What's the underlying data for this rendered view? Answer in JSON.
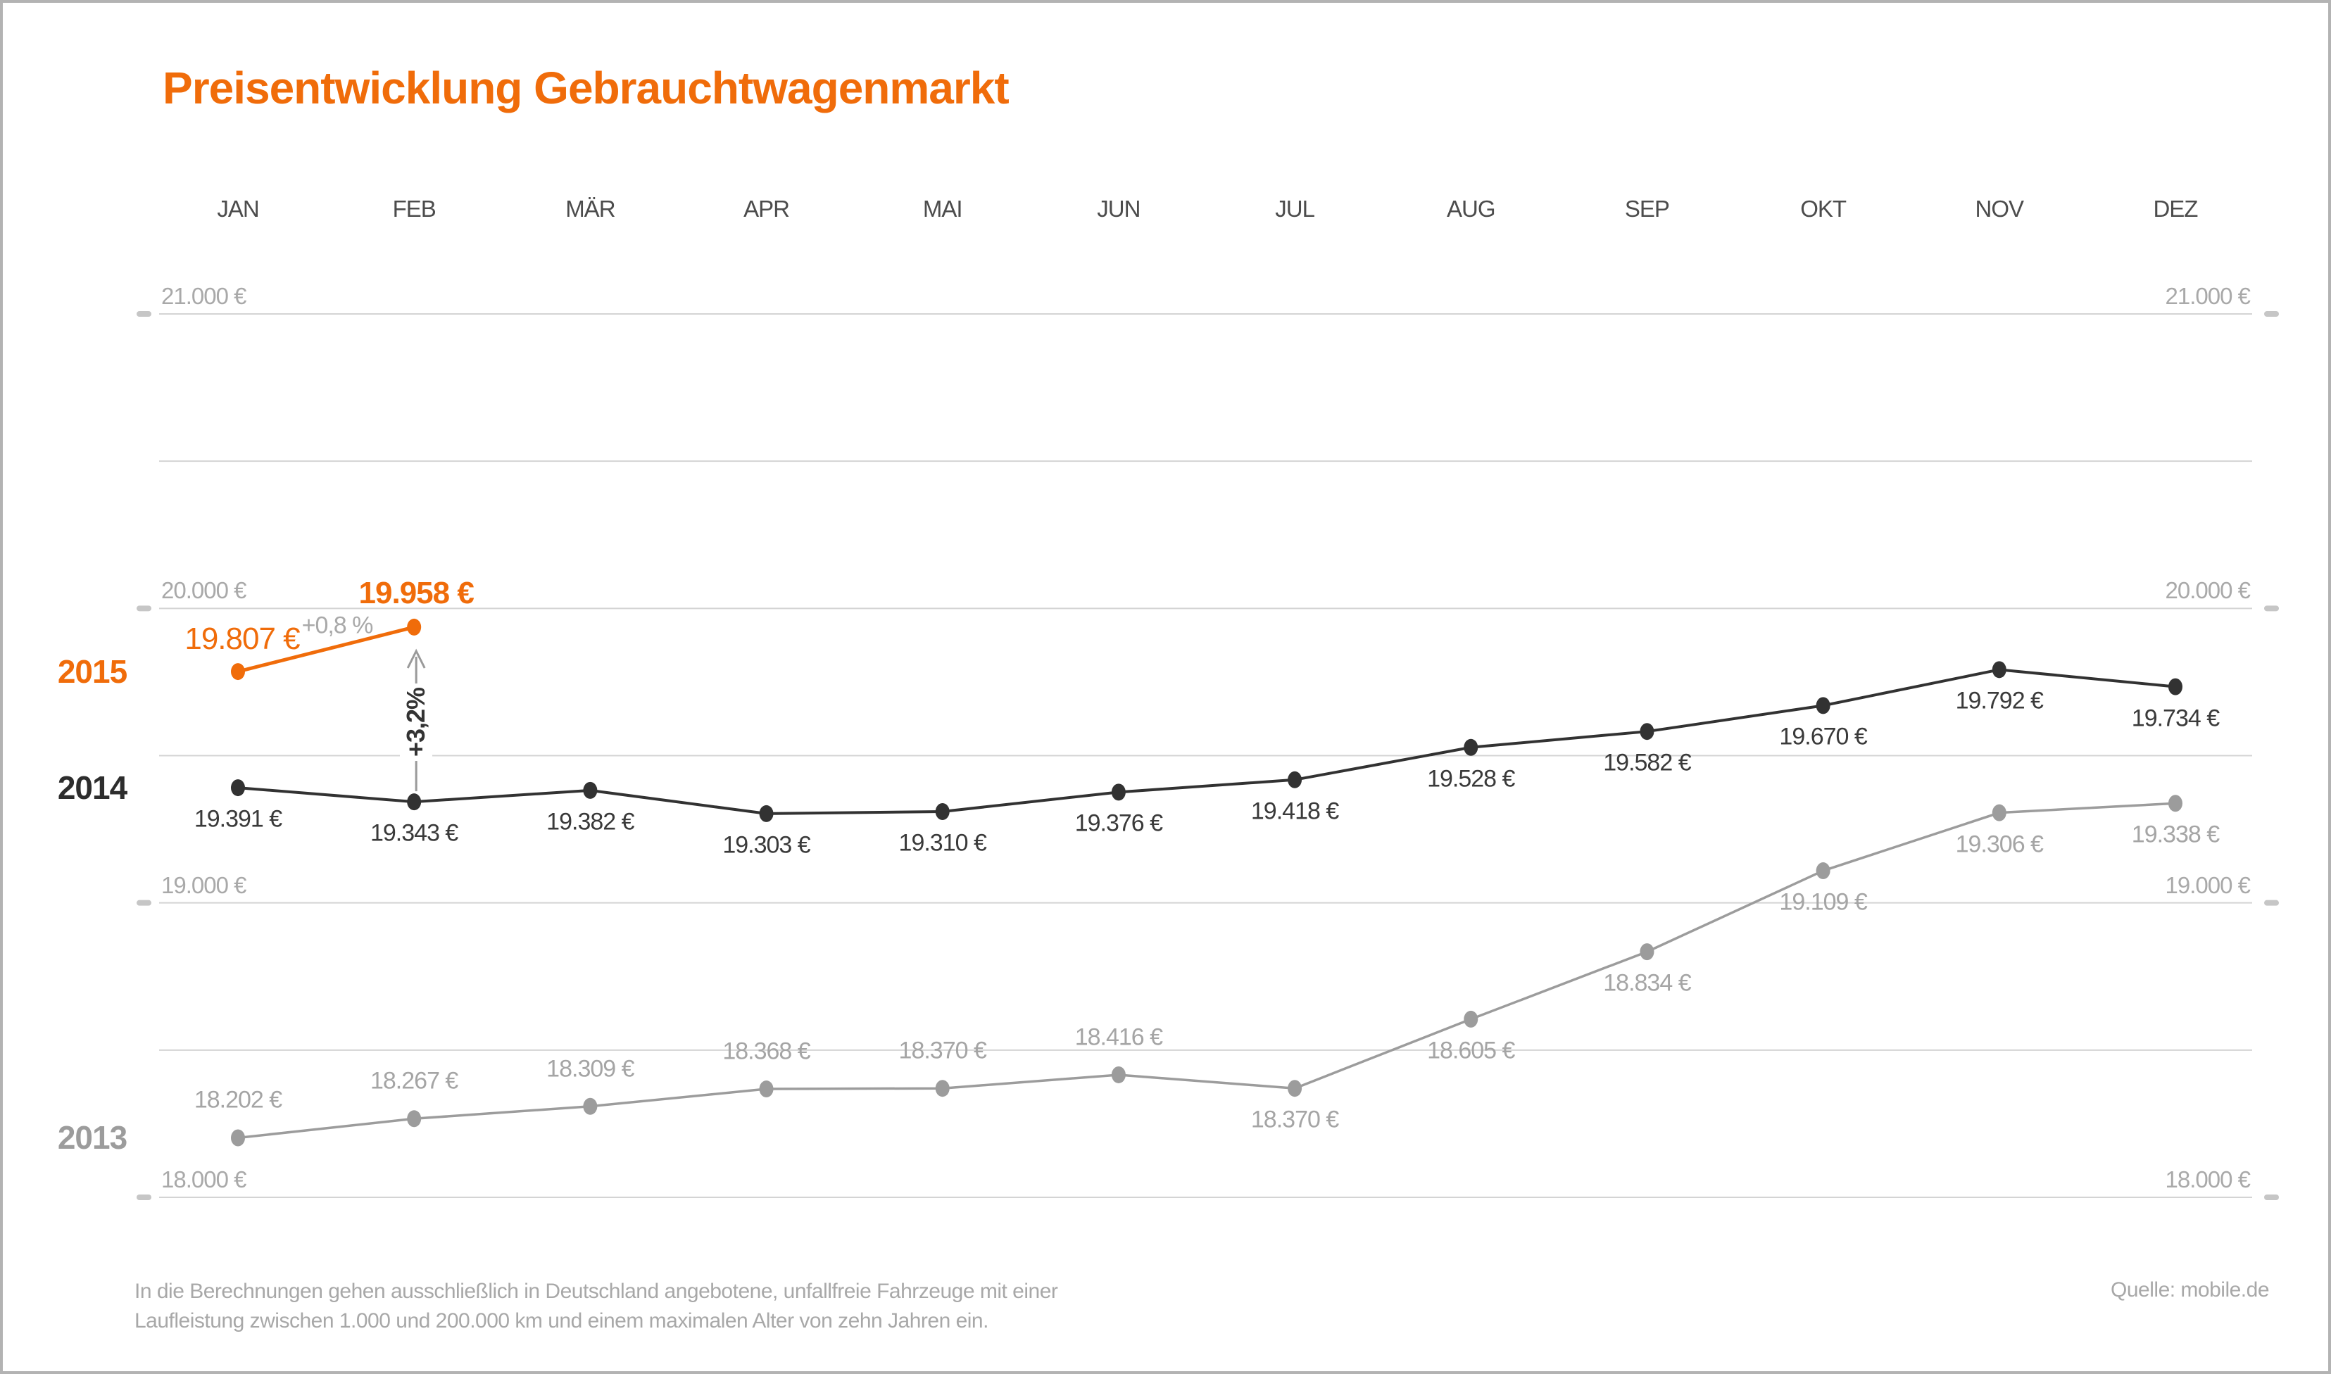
{
  "page": {
    "title": "Preisentwicklung Gebrauchtwagenmarkt",
    "footnote_line1": "In die Berechnungen gehen ausschließlich in Deutschland angebotene, unfallfreie Fahrzeuge mit einer",
    "footnote_line2": "Laufleistung zwischen 1.000 und 200.000 km und einem maximalen Alter von zehn Jahren ein.",
    "source": "Quelle: mobile.de"
  },
  "colors": {
    "accent_orange": "#f06c0a",
    "dark": "#323232",
    "mid_gray": "#9c9c9c",
    "light_gray_text": "#a9a9a9",
    "gridline": "#d4d4d4",
    "tick": "#c6c6c6",
    "arrow_gray": "#9a9a9a",
    "border": "#b3b3b3"
  },
  "chart_data": {
    "type": "line",
    "title": "Preisentwicklung Gebrauchtwagenmarkt",
    "unit": "EUR",
    "categories": [
      "JAN",
      "FEB",
      "MÄR",
      "APR",
      "MAI",
      "JUN",
      "JUL",
      "AUG",
      "SEP",
      "OKT",
      "NOV",
      "DEZ"
    ],
    "y_axis": {
      "min": 18000,
      "max": 21000,
      "gridline_step": 500,
      "labeled_ticks": [
        21000,
        20000,
        19000,
        18000
      ],
      "tick_labels": [
        "21.000 €",
        "20.000 €",
        "19.000 €",
        "18.000 €"
      ],
      "label_sides": "both",
      "grid": true
    },
    "legend_position": "left-year-labels",
    "series": [
      {
        "name": "2015",
        "color": "#f06c0a",
        "values": [
          19807,
          19958,
          null,
          null,
          null,
          null,
          null,
          null,
          null,
          null,
          null,
          null
        ],
        "point_labels": [
          "19.807 €",
          "19.958 €"
        ],
        "label_positions": [
          "above",
          "above"
        ]
      },
      {
        "name": "2014",
        "color": "#323232",
        "values": [
          19391,
          19343,
          19382,
          19303,
          19310,
          19376,
          19418,
          19528,
          19582,
          19670,
          19792,
          19734
        ],
        "point_labels": [
          "19.391 €",
          "19.343 €",
          "19.382 €",
          "19.303 €",
          "19.310 €",
          "19.376 €",
          "19.418 €",
          "19.528 €",
          "19.582 €",
          "19.670 €",
          "19.792 €",
          "19.734 €"
        ],
        "label_positions": [
          "below",
          "below",
          "below",
          "below",
          "below",
          "below",
          "below",
          "below",
          "below",
          "below",
          "below",
          "below"
        ]
      },
      {
        "name": "2013",
        "color": "#9c9c9c",
        "values": [
          18202,
          18267,
          18309,
          18368,
          18370,
          18416,
          18370,
          18605,
          18834,
          19109,
          19306,
          19338
        ],
        "point_labels": [
          "18.202 €",
          "18.267 €",
          "18.309 €",
          "18.368 €",
          "18.370 €",
          "18.416 €",
          "18.370 €",
          "18.605 €",
          "18.834 €",
          "19.109 €",
          "19.306 €",
          "19.338 €"
        ],
        "label_positions": [
          "above",
          "above",
          "above",
          "above",
          "above",
          "above",
          "below",
          "below",
          "below",
          "below",
          "below",
          "below"
        ]
      }
    ],
    "annotations": [
      {
        "id": "feb-change",
        "text": "+0,8 %",
        "description": "change JAN to FEB 2015"
      },
      {
        "id": "yoy-change",
        "text": "+3,2%",
        "description": "change FEB 2014 to FEB 2015, vertical up arrow"
      }
    ]
  }
}
